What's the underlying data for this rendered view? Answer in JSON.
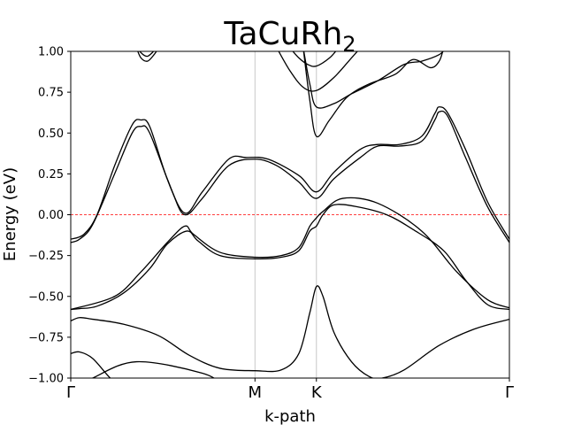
{
  "chart_data": {
    "type": "line",
    "title": "TaCuRh",
    "title_subscript": "2",
    "xlabel": "k-path",
    "ylabel": "Energy (eV)",
    "ylim": [
      -1.0,
      1.0
    ],
    "yticks": [
      -1.0,
      -0.75,
      -0.5,
      -0.25,
      0.0,
      0.25,
      0.5,
      0.75,
      1.0
    ],
    "ytick_labels": [
      "−1.00",
      "−0.75",
      "−0.50",
      "−0.25",
      "0.00",
      "0.25",
      "0.50",
      "0.75",
      "1.00"
    ],
    "kpoints": [
      {
        "label": "Γ",
        "pos": 0.0
      },
      {
        "label": "M",
        "pos": 0.42
      },
      {
        "label": "K",
        "pos": 0.56
      },
      {
        "label": "Γ",
        "pos": 1.0
      }
    ],
    "fermi_level": 0.0,
    "fermi_color": "#ff0000",
    "vline_color": "#c8c8c8",
    "band_color": "#000000",
    "bands": [
      [
        [
          0.0,
          -1.08
        ],
        [
          0.05,
          -1.0
        ],
        [
          0.15,
          -0.9
        ],
        [
          0.3,
          -0.97
        ],
        [
          0.35,
          -1.05
        ]
      ],
      [
        [
          0.0,
          -0.85
        ],
        [
          0.02,
          -0.84
        ],
        [
          0.05,
          -0.88
        ],
        [
          0.09,
          -1.0
        ],
        [
          0.12,
          -1.06
        ]
      ],
      [
        [
          0.0,
          -0.65
        ],
        [
          0.02,
          -0.63
        ],
        [
          0.05,
          -0.64
        ],
        [
          0.12,
          -0.67
        ],
        [
          0.2,
          -0.74
        ],
        [
          0.27,
          -0.86
        ],
        [
          0.34,
          -0.94
        ],
        [
          0.42,
          -0.955
        ],
        [
          0.48,
          -0.95
        ],
        [
          0.52,
          -0.85
        ],
        [
          0.545,
          -0.6
        ],
        [
          0.56,
          -0.44
        ],
        [
          0.575,
          -0.5
        ],
        [
          0.6,
          -0.72
        ],
        [
          0.64,
          -0.9
        ],
        [
          0.68,
          -0.99
        ],
        [
          0.71,
          -1.0
        ],
        [
          0.76,
          -0.95
        ],
        [
          0.84,
          -0.8
        ],
        [
          0.92,
          -0.7
        ],
        [
          1.0,
          -0.64
        ]
      ],
      [
        [
          0.0,
          -0.58
        ],
        [
          0.02,
          -0.575
        ],
        [
          0.06,
          -0.56
        ],
        [
          0.12,
          -0.48
        ],
        [
          0.18,
          -0.33
        ],
        [
          0.22,
          -0.18
        ],
        [
          0.265,
          -0.1
        ],
        [
          0.29,
          -0.16
        ],
        [
          0.34,
          -0.25
        ],
        [
          0.42,
          -0.27
        ],
        [
          0.48,
          -0.26
        ],
        [
          0.52,
          -0.22
        ],
        [
          0.545,
          -0.1
        ],
        [
          0.56,
          -0.07
        ],
        [
          0.575,
          0.0
        ],
        [
          0.6,
          0.06
        ],
        [
          0.65,
          0.05
        ],
        [
          0.72,
          0.0
        ],
        [
          0.78,
          -0.09
        ],
        [
          0.85,
          -0.22
        ],
        [
          0.9,
          -0.4
        ],
        [
          0.95,
          -0.55
        ],
        [
          1.0,
          -0.58
        ]
      ],
      [
        [
          0.0,
          -0.58
        ],
        [
          0.1,
          -0.5
        ],
        [
          0.16,
          -0.35
        ],
        [
          0.22,
          -0.17
        ],
        [
          0.26,
          -0.07
        ],
        [
          0.28,
          -0.12
        ],
        [
          0.34,
          -0.23
        ],
        [
          0.42,
          -0.26
        ],
        [
          0.48,
          -0.25
        ],
        [
          0.52,
          -0.2
        ],
        [
          0.545,
          -0.07
        ],
        [
          0.56,
          -0.02
        ],
        [
          0.575,
          0.02
        ],
        [
          0.62,
          0.1
        ],
        [
          0.7,
          0.07
        ],
        [
          0.8,
          -0.1
        ],
        [
          0.88,
          -0.35
        ],
        [
          0.95,
          -0.52
        ],
        [
          1.0,
          -0.57
        ]
      ],
      [
        [
          0.0,
          -0.17
        ],
        [
          0.02,
          -0.15
        ],
        [
          0.05,
          -0.06
        ],
        [
          0.1,
          0.25
        ],
        [
          0.14,
          0.5
        ],
        [
          0.16,
          0.54
        ],
        [
          0.18,
          0.5
        ],
        [
          0.23,
          0.15
        ],
        [
          0.26,
          0.0
        ],
        [
          0.3,
          0.1
        ],
        [
          0.36,
          0.3
        ],
        [
          0.42,
          0.34
        ],
        [
          0.47,
          0.3
        ],
        [
          0.52,
          0.2
        ],
        [
          0.56,
          0.1
        ],
        [
          0.6,
          0.22
        ],
        [
          0.66,
          0.35
        ],
        [
          0.7,
          0.42
        ],
        [
          0.75,
          0.42
        ],
        [
          0.8,
          0.45
        ],
        [
          0.83,
          0.58
        ],
        [
          0.84,
          0.63
        ],
        [
          0.86,
          0.6
        ],
        [
          0.9,
          0.35
        ],
        [
          0.95,
          0.05
        ],
        [
          1.0,
          -0.17
        ]
      ],
      [
        [
          0.0,
          -0.15
        ],
        [
          0.03,
          -0.12
        ],
        [
          0.06,
          0.0
        ],
        [
          0.1,
          0.3
        ],
        [
          0.14,
          0.55
        ],
        [
          0.16,
          0.58
        ],
        [
          0.18,
          0.54
        ],
        [
          0.22,
          0.22
        ],
        [
          0.26,
          0.01
        ],
        [
          0.3,
          0.14
        ],
        [
          0.36,
          0.34
        ],
        [
          0.4,
          0.35
        ],
        [
          0.45,
          0.34
        ],
        [
          0.52,
          0.24
        ],
        [
          0.56,
          0.14
        ],
        [
          0.6,
          0.26
        ],
        [
          0.66,
          0.4
        ],
        [
          0.7,
          0.43
        ],
        [
          0.75,
          0.43
        ],
        [
          0.8,
          0.48
        ],
        [
          0.83,
          0.62
        ],
        [
          0.84,
          0.66
        ],
        [
          0.86,
          0.62
        ],
        [
          0.9,
          0.4
        ],
        [
          0.95,
          0.08
        ],
        [
          1.0,
          -0.15
        ]
      ],
      [
        [
          0.15,
          1.02
        ],
        [
          0.16,
          0.96
        ],
        [
          0.175,
          0.94
        ],
        [
          0.19,
          0.98
        ],
        [
          0.2,
          1.02
        ]
      ],
      [
        [
          0.15,
          1.02
        ],
        [
          0.165,
          0.98
        ],
        [
          0.175,
          0.97
        ],
        [
          0.185,
          0.99
        ],
        [
          0.195,
          1.02
        ]
      ],
      [
        [
          0.53,
          1.02
        ],
        [
          0.545,
          0.7
        ],
        [
          0.56,
          0.48
        ],
        [
          0.59,
          0.58
        ],
        [
          0.63,
          0.72
        ],
        [
          0.68,
          0.8
        ],
        [
          0.74,
          0.86
        ],
        [
          0.78,
          0.95
        ],
        [
          0.82,
          0.9
        ],
        [
          0.84,
          0.94
        ],
        [
          0.85,
          1.02
        ]
      ],
      [
        [
          0.53,
          1.02
        ],
        [
          0.545,
          0.8
        ],
        [
          0.56,
          0.66
        ],
        [
          0.6,
          0.68
        ],
        [
          0.64,
          0.74
        ],
        [
          0.7,
          0.82
        ],
        [
          0.76,
          0.92
        ],
        [
          0.8,
          0.94
        ],
        [
          0.84,
          0.98
        ],
        [
          0.855,
          1.02
        ]
      ],
      [
        [
          0.47,
          1.02
        ],
        [
          0.5,
          0.88
        ],
        [
          0.53,
          0.78
        ],
        [
          0.56,
          0.76
        ],
        [
          0.6,
          0.84
        ],
        [
          0.64,
          0.96
        ],
        [
          0.66,
          1.02
        ]
      ],
      [
        [
          0.5,
          1.02
        ],
        [
          0.52,
          0.96
        ],
        [
          0.54,
          0.92
        ],
        [
          0.56,
          0.91
        ],
        [
          0.59,
          0.96
        ],
        [
          0.61,
          1.02
        ]
      ]
    ]
  }
}
